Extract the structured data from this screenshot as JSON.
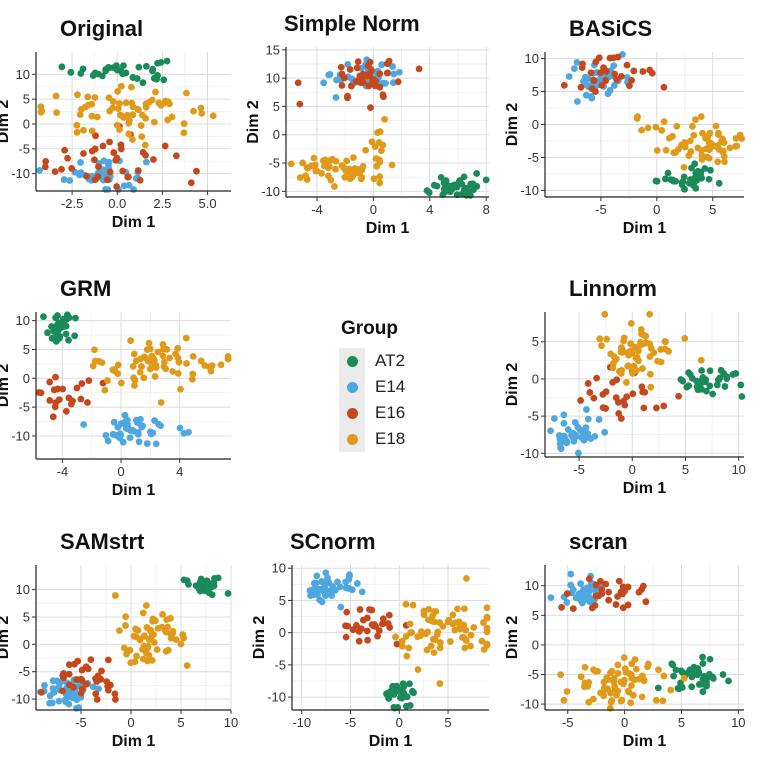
{
  "colors": {
    "AT2": "#1b8a5a",
    "E14": "#4fa7e0",
    "E16": "#c4481c",
    "E18": "#e09a1a"
  },
  "legend": {
    "title": "Group",
    "items": [
      "AT2",
      "E14",
      "E16",
      "E18"
    ]
  },
  "chart_data": [
    {
      "type": "scatter",
      "title": "Original",
      "xlabel": "Dim 1",
      "ylabel": "Dim 2",
      "xlim": [
        -4.5,
        6.3
      ],
      "ylim": [
        -13.5,
        14.5
      ],
      "xticks": [
        -2.5,
        0.0,
        2.5,
        5.0
      ],
      "xtick_labels": [
        "-2.5",
        "0.0",
        "2.5",
        "5.0"
      ],
      "yticks": [
        -10,
        -5,
        0,
        5,
        10
      ],
      "ytick_labels": [
        "-10",
        "-5",
        "0",
        "5",
        "10"
      ],
      "clusters": [
        {
          "group": "AT2",
          "cx": 0.2,
          "cy": 10.8,
          "sx": 1.3,
          "sy": 1.2,
          "n": 35
        },
        {
          "group": "E14",
          "cx": -0.7,
          "cy": -10,
          "sx": 1.1,
          "sy": 1.8,
          "n": 45
        },
        {
          "group": "E16",
          "cx": -0.8,
          "cy": -7,
          "sx": 2.0,
          "sy": 3.0,
          "n": 40
        },
        {
          "group": "E18",
          "cx": 0.5,
          "cy": 2.5,
          "sx": 2.3,
          "sy": 2.2,
          "n": 70
        }
      ]
    },
    {
      "type": "scatter",
      "title": "Simple Norm",
      "xlabel": "Dim 1",
      "ylabel": "Dim 2",
      "xlim": [
        -6.2,
        8.2
      ],
      "ylim": [
        -11,
        15.5
      ],
      "xticks": [
        -4,
        0,
        4,
        8
      ],
      "xtick_labels": [
        "-4",
        "0",
        "4",
        "8"
      ],
      "yticks": [
        -10,
        -5,
        0,
        5,
        10,
        15
      ],
      "ytick_labels": [
        "-10",
        "-5",
        "0",
        "5",
        "10",
        "15"
      ],
      "clusters": [
        {
          "group": "AT2",
          "cx": 5.8,
          "cy": -9.2,
          "sx": 1.0,
          "sy": 1.1,
          "n": 35
        },
        {
          "group": "E14",
          "cx": -0.5,
          "cy": 10.5,
          "sx": 1.2,
          "sy": 1.3,
          "n": 45
        },
        {
          "group": "E16",
          "cx": -0.7,
          "cy": 10,
          "sx": 1.4,
          "sy": 2.0,
          "n": 40
        },
        {
          "group": "E18",
          "cx": -2.3,
          "cy": -6.2,
          "sx": 1.6,
          "sy": 1.4,
          "n": 60
        },
        {
          "group": "E18",
          "cx": 0.3,
          "cy": -0.5,
          "sx": 0.4,
          "sy": 1.2,
          "n": 8
        }
      ]
    },
    {
      "type": "scatter",
      "title": "BASiCS",
      "xlabel": "Dim 1",
      "ylabel": "Dim 2",
      "xlim": [
        -10,
        7.8
      ],
      "ylim": [
        -11,
        11
      ],
      "xticks": [
        -5,
        0,
        5
      ],
      "xtick_labels": [
        "-5",
        "0",
        "5"
      ],
      "yticks": [
        -10,
        -5,
        0,
        5,
        10
      ],
      "ytick_labels": [
        "-10",
        "-5",
        "0",
        "5",
        "10"
      ],
      "clusters": [
        {
          "group": "AT2",
          "cx": 3.5,
          "cy": -8,
          "sx": 1.8,
          "sy": 1.0,
          "n": 35
        },
        {
          "group": "E14",
          "cx": -5.5,
          "cy": 6.8,
          "sx": 1.3,
          "sy": 1.5,
          "n": 45
        },
        {
          "group": "E16",
          "cx": -4.2,
          "cy": 7,
          "sx": 2.2,
          "sy": 1.8,
          "n": 30
        },
        {
          "group": "E18",
          "cx": 4.3,
          "cy": -3,
          "sx": 1.8,
          "sy": 1.6,
          "n": 60
        },
        {
          "group": "E18",
          "cx": -0.5,
          "cy": 0,
          "sx": 1.0,
          "sy": 0.8,
          "n": 6
        }
      ]
    },
    {
      "type": "scatter",
      "title": "GRM",
      "xlabel": "Dim 1",
      "ylabel": "Dim 2",
      "xlim": [
        -5.8,
        7.5
      ],
      "ylim": [
        -14,
        11.5
      ],
      "xticks": [
        -4,
        0,
        4
      ],
      "xtick_labels": [
        "-4",
        "0",
        "4"
      ],
      "yticks": [
        -10,
        -5,
        0,
        5,
        10
      ],
      "ytick_labels": [
        "-10",
        "-5",
        "0",
        "5",
        "10"
      ],
      "clusters": [
        {
          "group": "AT2",
          "cx": -4.3,
          "cy": 8.8,
          "sx": 0.6,
          "sy": 1.3,
          "n": 30
        },
        {
          "group": "E14",
          "cx": 0.7,
          "cy": -9.5,
          "sx": 1.4,
          "sy": 1.5,
          "n": 45
        },
        {
          "group": "E16",
          "cx": -3.8,
          "cy": -2.5,
          "sx": 1.0,
          "sy": 2.2,
          "n": 22
        },
        {
          "group": "E18",
          "cx": 2.5,
          "cy": 2.5,
          "sx": 2.2,
          "sy": 2.0,
          "n": 70
        }
      ]
    },
    {
      "type": "scatter",
      "title": "Linnorm",
      "xlabel": "Dim 1",
      "ylabel": "Dim 2",
      "xlim": [
        -8.2,
        10.5
      ],
      "ylim": [
        -10.5,
        9
      ],
      "xticks": [
        -5,
        0,
        5,
        10
      ],
      "xtick_labels": [
        "-5",
        "0",
        "5",
        "10"
      ],
      "yticks": [
        -10,
        -5,
        0,
        5
      ],
      "ytick_labels": [
        "-10",
        "-5",
        "0",
        "5"
      ],
      "clusters": [
        {
          "group": "AT2",
          "cx": 7.5,
          "cy": 0,
          "sx": 1.3,
          "sy": 1.1,
          "n": 35
        },
        {
          "group": "E14",
          "cx": -5.5,
          "cy": -7.5,
          "sx": 1.2,
          "sy": 1.3,
          "n": 40
        },
        {
          "group": "E16",
          "cx": -1.5,
          "cy": -1.5,
          "sx": 2.0,
          "sy": 2.0,
          "n": 30
        },
        {
          "group": "E18",
          "cx": 0.5,
          "cy": 3.5,
          "sx": 2.3,
          "sy": 2.2,
          "n": 65
        }
      ]
    },
    {
      "type": "scatter",
      "title": "SAMstrt",
      "xlabel": "Dim 1",
      "ylabel": "Dim 2",
      "xlim": [
        -9.5,
        10
      ],
      "ylim": [
        -12,
        14.5
      ],
      "xticks": [
        -5,
        0,
        5,
        10
      ],
      "xtick_labels": [
        "-5",
        "0",
        "5",
        "10"
      ],
      "yticks": [
        -10,
        -5,
        0,
        5,
        10
      ],
      "ytick_labels": [
        "-10",
        "-5",
        "0",
        "5",
        "10"
      ],
      "clusters": [
        {
          "group": "AT2",
          "cx": 7.2,
          "cy": 10.8,
          "sx": 1.0,
          "sy": 0.8,
          "n": 30
        },
        {
          "group": "E14",
          "cx": -6.5,
          "cy": -8.5,
          "sx": 1.3,
          "sy": 1.5,
          "n": 50
        },
        {
          "group": "E16",
          "cx": -5,
          "cy": -6.5,
          "sx": 1.8,
          "sy": 2.2,
          "n": 35
        },
        {
          "group": "E18",
          "cx": 2,
          "cy": 1,
          "sx": 1.6,
          "sy": 2.2,
          "n": 60
        }
      ]
    },
    {
      "type": "scatter",
      "title": "SCnorm",
      "xlabel": "Dim 1",
      "ylabel": "Dim 2",
      "xlim": [
        -11,
        9.2
      ],
      "ylim": [
        -12,
        10.5
      ],
      "xticks": [
        -10,
        -5,
        0,
        5
      ],
      "xtick_labels": [
        "-10",
        "-5",
        "0",
        "5"
      ],
      "yticks": [
        -10,
        -5,
        0,
        5,
        10
      ],
      "ytick_labels": [
        "-10",
        "-5",
        "0",
        "5",
        "10"
      ],
      "clusters": [
        {
          "group": "AT2",
          "cx": 0,
          "cy": -9.5,
          "sx": 0.8,
          "sy": 1.0,
          "n": 35
        },
        {
          "group": "E14",
          "cx": -7,
          "cy": 7,
          "sx": 1.4,
          "sy": 1.3,
          "n": 45
        },
        {
          "group": "E16",
          "cx": -3.5,
          "cy": 1,
          "sx": 1.3,
          "sy": 1.0,
          "n": 30
        },
        {
          "group": "E18",
          "cx": 4.5,
          "cy": 0.5,
          "sx": 2.6,
          "sy": 2.0,
          "n": 70
        }
      ]
    },
    {
      "type": "scatter",
      "title": "scran",
      "xlabel": "Dim 1",
      "ylabel": "Dim 2",
      "xlim": [
        -7,
        10.5
      ],
      "ylim": [
        -11,
        13.5
      ],
      "xticks": [
        -5,
        0,
        5,
        10
      ],
      "xtick_labels": [
        "-5",
        "0",
        "5",
        "10"
      ],
      "yticks": [
        -10,
        -5,
        0,
        5,
        10
      ],
      "ytick_labels": [
        "-10",
        "-5",
        "0",
        "5",
        "10"
      ],
      "clusters": [
        {
          "group": "AT2",
          "cx": 6.5,
          "cy": -5.5,
          "sx": 1.3,
          "sy": 1.5,
          "n": 40
        },
        {
          "group": "E14",
          "cx": -3.5,
          "cy": 9,
          "sx": 1.1,
          "sy": 1.2,
          "n": 40
        },
        {
          "group": "E16",
          "cx": -1,
          "cy": 8.5,
          "sx": 1.8,
          "sy": 1.6,
          "n": 30
        },
        {
          "group": "E18",
          "cx": -0.5,
          "cy": -6.5,
          "sx": 2.0,
          "sy": 1.8,
          "n": 70
        }
      ]
    }
  ]
}
